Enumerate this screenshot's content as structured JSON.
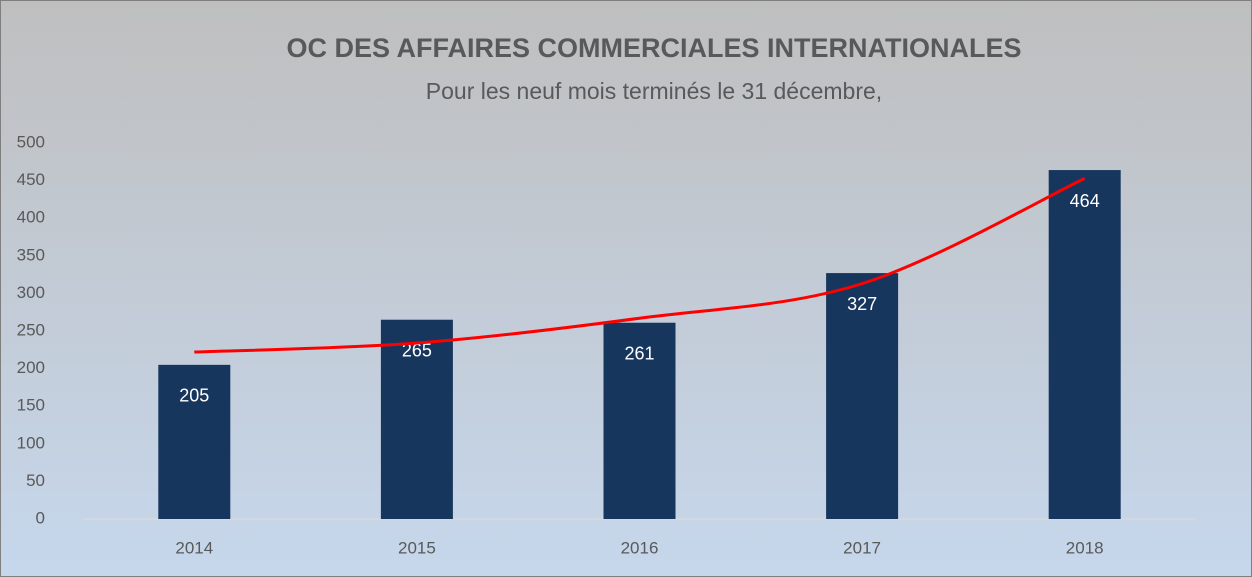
{
  "chart_data": {
    "type": "bar",
    "title": "OC DES AFFAIRES COMMERCIALES INTERNATIONALES",
    "subtitle": "Pour les neuf mois terminés le 31 décembre,",
    "categories": [
      "2014",
      "2015",
      "2016",
      "2017",
      "2018"
    ],
    "values": [
      205,
      265,
      261,
      327,
      464
    ],
    "color": "#17365d",
    "trendline": {
      "color": "#ff0000",
      "values": [
        222,
        234,
        267,
        313,
        453
      ]
    },
    "ylim": [
      0,
      500
    ],
    "yticks": [
      0,
      50,
      100,
      150,
      200,
      250,
      300,
      350,
      400,
      450,
      500
    ],
    "grid": false
  }
}
